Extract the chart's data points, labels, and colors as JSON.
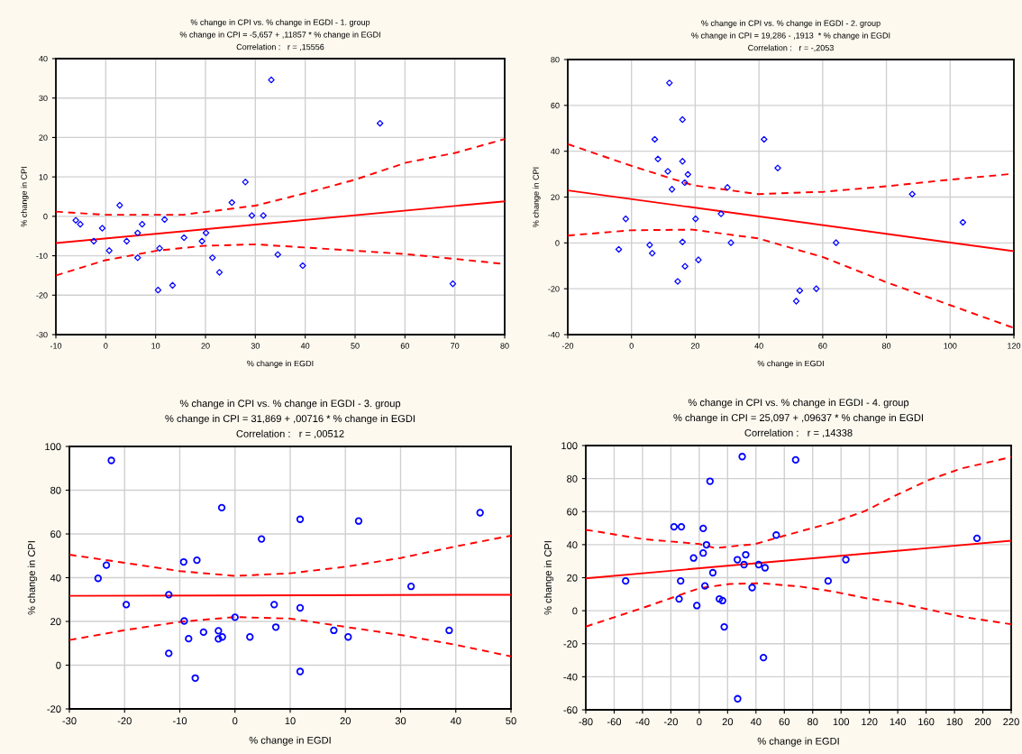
{
  "chart_data": [
    {
      "type": "scatter",
      "title": "% change in CPI vs. % change in EGDI - 1. group",
      "subtitle": "% change in CPI = -5,657 + ,11857 * % change in EGDI",
      "annotations": [
        "Correlation :   r = ,15556"
      ],
      "xlabel": "% change in EGDI",
      "ylabel": "% change in CPI",
      "xlim": [
        -10,
        80
      ],
      "ylim": [
        -30,
        40
      ],
      "xticks": [
        -10,
        0,
        10,
        20,
        30,
        40,
        50,
        60,
        70,
        80
      ],
      "yticks": [
        -30,
        -20,
        -10,
        0,
        10,
        20,
        30,
        40
      ],
      "grid": true,
      "series": [
        {
          "marker": "diamond",
          "color": "#0000ff",
          "x": [
            -6,
            -5.1,
            -2.4,
            -0.7,
            0.7,
            2.8,
            4.2,
            6.4,
            6.4,
            7.3,
            10.5,
            10.8,
            11.8,
            13.4,
            15.7,
            19.3,
            20.1,
            21.4,
            22.8,
            25.3,
            28.0,
            29.3,
            31.6,
            33.2,
            34.5,
            39.5,
            55.0,
            69.6
          ],
          "values": [
            -1,
            -2,
            -6.3,
            -3.0,
            -8.7,
            2.8,
            -6.3,
            -4.2,
            -10.5,
            -2,
            -18.7,
            -8.1,
            -0.8,
            -17.5,
            -5.4,
            -6.3,
            -4.2,
            -10.5,
            -14.2,
            3.5,
            8.7,
            0.2,
            0.2,
            34.6,
            -9.7,
            -12.5,
            23.6,
            -17.1
          ]
        },
        {
          "type": "line",
          "line_style": "solid",
          "color": "#ff0000",
          "x": [
            -10,
            80
          ],
          "values": [
            -6.8,
            3.8
          ]
        },
        {
          "type": "line",
          "line_style": "dashed",
          "color": "#ff0000",
          "x": [
            -10,
            -0.3,
            15.5,
            30,
            39.8,
            50,
            60.2,
            70.1,
            80
          ],
          "values": [
            1.2,
            0.4,
            0.4,
            2.7,
            5.8,
            9.3,
            13.6,
            16.1,
            19.6
          ]
        },
        {
          "type": "line",
          "line_style": "dashed",
          "color": "#ff0000",
          "x": [
            -10,
            -0.3,
            10.3,
            19.5,
            30,
            39.8,
            50,
            60.2,
            70.1,
            80
          ],
          "values": [
            -15,
            -11.2,
            -8.7,
            -7.5,
            -7.1,
            -7.9,
            -8.7,
            -9.6,
            -10.8,
            -12.1
          ]
        }
      ]
    },
    {
      "type": "scatter",
      "title": "% change in CPI vs. % change in EGDI - 2. group",
      "subtitle": "% change in CPI = 19,286 - ,1913  * % change in EGDI",
      "annotations": [
        "Correlation :   r = -,2053"
      ],
      "xlabel": "% change in EGDI",
      "ylabel": "% change in CPI",
      "xlim": [
        -20,
        120
      ],
      "ylim": [
        -40,
        80
      ],
      "xticks": [
        -20,
        0,
        20,
        40,
        60,
        80,
        100,
        120
      ],
      "yticks": [
        -40,
        -20,
        0,
        20,
        40,
        60,
        80
      ],
      "grid": true,
      "series": [
        {
          "marker": "diamond",
          "color": "#0000ff",
          "x": [
            -4.0,
            -1.8,
            5.7,
            6.5,
            7.3,
            8.3,
            11.4,
            11.9,
            12.7,
            14.5,
            16.0,
            16.0,
            16.0,
            16.7,
            16.8,
            17.7,
            20.1,
            21.0,
            28.1,
            30.1,
            31.2,
            41.6,
            45.9,
            51.7,
            52.8,
            58.0,
            64.2,
            88.1,
            104.0
          ],
          "values": [
            -2.8,
            10.5,
            -0.9,
            -4.5,
            45.2,
            36.6,
            31.2,
            69.8,
            23.4,
            -16.8,
            53.8,
            35.6,
            0.4,
            26.3,
            -10.2,
            29.9,
            10.5,
            -7.4,
            12.7,
            24.2,
            0.1,
            45.2,
            32.7,
            -25.4,
            -20.8,
            -20.0,
            0.1,
            21.3,
            9.0
          ]
        },
        {
          "type": "line",
          "line_style": "solid",
          "color": "#ff0000",
          "x": [
            -20,
            120
          ],
          "values": [
            22.9,
            -3.6
          ]
        },
        {
          "type": "line",
          "line_style": "dashed",
          "color": "#ff0000",
          "x": [
            -20,
            -0.4,
            19.1,
            39.7,
            60.3,
            79.9,
            99.9,
            120
          ],
          "values": [
            43.1,
            33.8,
            25.2,
            21.3,
            22.3,
            24.7,
            27.6,
            30.2
          ]
        },
        {
          "type": "line",
          "line_style": "dashed",
          "color": "#ff0000",
          "x": [
            -20,
            -0.4,
            19.1,
            39.7,
            60.3,
            79.9,
            99.9,
            120
          ],
          "values": [
            3.2,
            5.5,
            5.8,
            2.0,
            -6.3,
            -17.1,
            -27.1,
            -37.1
          ]
        }
      ]
    },
    {
      "type": "scatter",
      "title": "% change in CPI vs. % change in EGDI - 3. group",
      "subtitle": "% change in CPI = 31,869 + ,00716 * % change in EGDI",
      "annotations": [
        "Correlation :   r = ,00512"
      ],
      "xlabel": "% change in EGDI",
      "ylabel": "% change in CPI",
      "xlim": [
        -30,
        50
      ],
      "ylim": [
        -20,
        100
      ],
      "xticks": [
        -30,
        -20,
        -10,
        0,
        10,
        20,
        30,
        40,
        50
      ],
      "yticks": [
        -20,
        0,
        20,
        40,
        60,
        80,
        100
      ],
      "grid": true,
      "series": [
        {
          "marker": "circle",
          "color": "#0000ff",
          "x": [
            -22.4,
            -24.8,
            -23.3,
            -19.7,
            -12.0,
            -12.0,
            -9.3,
            -9.2,
            -8.4,
            -6.9,
            -7.2,
            -5.7,
            -3.0,
            -3.0,
            -2.4,
            -2.3,
            0.0,
            2.7,
            4.8,
            7.1,
            7.4,
            11.8,
            11.8,
            11.8,
            17.9,
            20.5,
            22.4,
            31.9,
            38.8,
            44.4
          ],
          "values": [
            93.6,
            39.7,
            45.7,
            27.7,
            32.2,
            5.4,
            47.2,
            20.2,
            12.1,
            48.0,
            -5.9,
            15.1,
            15.7,
            12.0,
            72.0,
            12.9,
            21.9,
            12.9,
            57.7,
            27.7,
            17.4,
            66.7,
            26.2,
            -2.9,
            15.9,
            12.9,
            65.9,
            36.0,
            15.9,
            69.7
          ]
        },
        {
          "type": "line",
          "line_style": "solid",
          "color": "#ff0000",
          "x": [
            -30,
            50
          ],
          "values": [
            31.7,
            32.2
          ]
        },
        {
          "type": "line",
          "line_style": "dashed",
          "color": "#ff0000",
          "x": [
            -30,
            -20,
            -10,
            0,
            10,
            20,
            30,
            40,
            50
          ],
          "values": [
            50.5,
            46.8,
            43,
            40.8,
            42,
            45,
            49,
            54.3,
            59.2
          ]
        },
        {
          "type": "line",
          "line_style": "dashed",
          "color": "#ff0000",
          "x": [
            -30,
            -20,
            -10,
            0,
            10,
            20,
            30,
            40,
            50
          ],
          "values": [
            11.5,
            16,
            19.8,
            22,
            21.3,
            17.5,
            13.8,
            9.3,
            4
          ]
        }
      ]
    },
    {
      "type": "scatter",
      "title": "% change in CPI vs. % change in EGDI - 4. group",
      "subtitle": "% change in CPI = 25,097 + ,09637 * % change in EGDI",
      "annotations": [
        "Correlation :   r = ,14338"
      ],
      "xlabel": "% change in EGDI",
      "ylabel": "% change in CPI",
      "xlim": [
        -80,
        220
      ],
      "ylim": [
        -60,
        100
      ],
      "xticks": [
        -80,
        -60,
        -40,
        -20,
        0,
        20,
        40,
        60,
        80,
        100,
        120,
        140,
        160,
        180,
        200,
        220
      ],
      "yticks": [
        -60,
        -40,
        -20,
        0,
        20,
        40,
        60,
        80,
        100
      ],
      "grid": true,
      "series": [
        {
          "marker": "circle",
          "color": "#0000ff",
          "x": [
            -51.9,
            -17.8,
            -12.6,
            -13.1,
            -14.2,
            -4.0,
            -1.7,
            2.8,
            2.8,
            4.0,
            5.1,
            7.6,
            9.6,
            14.2,
            16.4,
            17.6,
            26.9,
            27.1,
            30.3,
            31.6,
            32.8,
            37.3,
            41.9,
            45.3,
            46.4,
            54.3,
            68.0,
            90.9,
            103.4,
            195.9
          ],
          "values": [
            18.0,
            50.8,
            50.8,
            18.0,
            7.1,
            31.9,
            3.1,
            49.8,
            34.9,
            15.0,
            39.9,
            78.4,
            23.0,
            7.1,
            6.1,
            -9.8,
            30.9,
            -53.3,
            93.3,
            27.9,
            33.9,
            14.0,
            27.9,
            -28.4,
            26.0,
            45.8,
            91.3,
            18.0,
            30.9,
            43.8
          ]
        },
        {
          "type": "line",
          "line_style": "solid",
          "color": "#ff0000",
          "x": [
            -80,
            220
          ],
          "values": [
            19.6,
            42.4
          ]
        },
        {
          "type": "line",
          "line_style": "dashed",
          "color": "#ff0000",
          "x": [
            -80,
            -39.8,
            0,
            11.3,
            39.6,
            60,
            94,
            116.8,
            139.4,
            162.1,
            184.8,
            220
          ],
          "values": [
            49,
            43.4,
            40.4,
            37.9,
            40.4,
            45.4,
            53.4,
            60.3,
            70.2,
            79.2,
            86.1,
            93
          ]
        },
        {
          "type": "line",
          "line_style": "dashed",
          "color": "#ff0000",
          "x": [
            -80,
            -39.8,
            0,
            21.4,
            44.1,
            71.4,
            94,
            116.8,
            139.4,
            162.1,
            184.8,
            220
          ],
          "values": [
            -9.6,
            1.7,
            13.6,
            16.2,
            16.6,
            14.6,
            11.7,
            7.7,
            4.7,
            0.7,
            -3.6,
            -8.2
          ]
        }
      ]
    }
  ]
}
